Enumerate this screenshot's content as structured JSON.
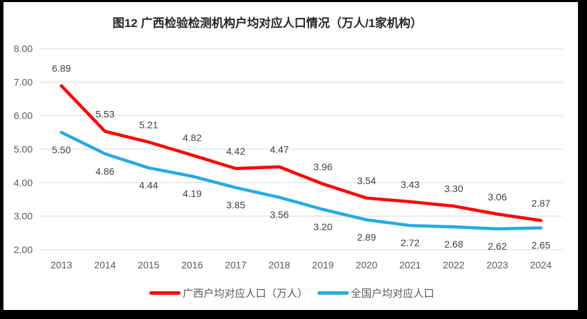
{
  "window": {
    "background": "#FFFFFF",
    "frame_color": "#000000"
  },
  "chart_data": {
    "type": "line",
    "title": "图12 广西检验检测机构户均对应人口情况（万人/1家机构）",
    "categories": [
      "2013",
      "2014",
      "2015",
      "2016",
      "2017",
      "2018",
      "2019",
      "2020",
      "2021",
      "2022",
      "2023",
      "2024"
    ],
    "series": [
      {
        "name": "广西户均对应人口（万人）",
        "color": "#FF0000",
        "values": [
          6.89,
          5.53,
          5.21,
          4.82,
          4.42,
          4.47,
          3.96,
          3.54,
          3.43,
          3.3,
          3.06,
          2.87
        ],
        "labels": [
          "6.89",
          "5.53",
          "5.21",
          "4.82",
          "4.42",
          "4.47",
          "3.96",
          "3.54",
          "3.43",
          "3.30",
          "3.06",
          "2.87"
        ],
        "label_position": "above"
      },
      {
        "name": "全国户均对应人口",
        "color": "#27AAE1",
        "values": [
          5.5,
          4.86,
          4.44,
          4.19,
          3.85,
          3.56,
          3.2,
          2.89,
          2.72,
          2.68,
          2.62,
          2.65
        ],
        "labels": [
          "5.50",
          "4.86",
          "4.44",
          "4.19",
          "3.85",
          "3.56",
          "3.20",
          "2.89",
          "2.72",
          "2.68",
          "2.62",
          "2.65"
        ],
        "label_position": "below"
      }
    ],
    "y_axis": {
      "min": 2,
      "max": 8,
      "step": 1,
      "tick_labels": [
        "2.00",
        "3.00",
        "4.00",
        "5.00",
        "6.00",
        "7.00",
        "8.00"
      ]
    },
    "grid": true,
    "gridline_color": "#D9D9D9",
    "axis_label_color": "#595959",
    "data_label_color": "#404040",
    "legend_position": "bottom"
  }
}
